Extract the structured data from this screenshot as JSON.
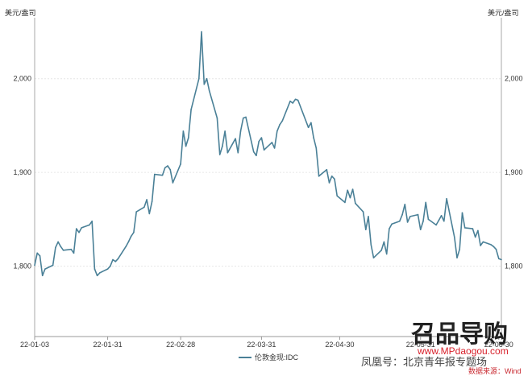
{
  "chart_data": {
    "type": "line",
    "unit_left": "美元/盎司",
    "unit_right": "美元/盎司",
    "x_ticks": [
      "22-01-03",
      "22-01-31",
      "22-02-28",
      "22-03-31",
      "22-04-30",
      "22-05-31",
      "22-06-30"
    ],
    "y_ticks": [
      "1,800",
      "1,900",
      "2,000"
    ],
    "y_tick_values": [
      1800,
      1900,
      2000
    ],
    "ylim": [
      1725,
      2065
    ],
    "xlim": [
      "2022-01-03",
      "2022-07-01"
    ],
    "grid": true,
    "legend_position": "bottom",
    "series": [
      {
        "name": "伦敦金现:IDC",
        "color": "#4a8097",
        "x": [
          "2022-01-03",
          "2022-01-04",
          "2022-01-05",
          "2022-01-06",
          "2022-01-07",
          "2022-01-10",
          "2022-01-11",
          "2022-01-12",
          "2022-01-13",
          "2022-01-14",
          "2022-01-17",
          "2022-01-18",
          "2022-01-19",
          "2022-01-20",
          "2022-01-21",
          "2022-01-24",
          "2022-01-25",
          "2022-01-26",
          "2022-01-27",
          "2022-01-28",
          "2022-01-31",
          "2022-02-01",
          "2022-02-02",
          "2022-02-03",
          "2022-02-04",
          "2022-02-07",
          "2022-02-08",
          "2022-02-09",
          "2022-02-10",
          "2022-02-11",
          "2022-02-14",
          "2022-02-15",
          "2022-02-16",
          "2022-02-17",
          "2022-02-18",
          "2022-02-21",
          "2022-02-22",
          "2022-02-23",
          "2022-02-24",
          "2022-02-25",
          "2022-02-28",
          "2022-03-01",
          "2022-03-02",
          "2022-03-03",
          "2022-03-04",
          "2022-03-07",
          "2022-03-08",
          "2022-03-09",
          "2022-03-10",
          "2022-03-11",
          "2022-03-14",
          "2022-03-15",
          "2022-03-16",
          "2022-03-17",
          "2022-03-18",
          "2022-03-21",
          "2022-03-22",
          "2022-03-23",
          "2022-03-24",
          "2022-03-25",
          "2022-03-28",
          "2022-03-29",
          "2022-03-30",
          "2022-03-31",
          "2022-04-01",
          "2022-04-04",
          "2022-04-05",
          "2022-04-06",
          "2022-04-07",
          "2022-04-08",
          "2022-04-11",
          "2022-04-12",
          "2022-04-13",
          "2022-04-14",
          "2022-04-18",
          "2022-04-19",
          "2022-04-20",
          "2022-04-21",
          "2022-04-22",
          "2022-04-25",
          "2022-04-26",
          "2022-04-27",
          "2022-04-28",
          "2022-04-29",
          "2022-05-02",
          "2022-05-03",
          "2022-05-04",
          "2022-05-05",
          "2022-05-06",
          "2022-05-09",
          "2022-05-10",
          "2022-05-11",
          "2022-05-12",
          "2022-05-13",
          "2022-05-16",
          "2022-05-17",
          "2022-05-18",
          "2022-05-19",
          "2022-05-20",
          "2022-05-23",
          "2022-05-24",
          "2022-05-25",
          "2022-05-26",
          "2022-05-27",
          "2022-05-30",
          "2022-05-31",
          "2022-06-01",
          "2022-06-02",
          "2022-06-03",
          "2022-06-06",
          "2022-06-07",
          "2022-06-08",
          "2022-06-09",
          "2022-06-10",
          "2022-06-13",
          "2022-06-14",
          "2022-06-15",
          "2022-06-16",
          "2022-06-17",
          "2022-06-20",
          "2022-06-21",
          "2022-06-22",
          "2022-06-23",
          "2022-06-24",
          "2022-06-27",
          "2022-06-28",
          "2022-06-29",
          "2022-06-30",
          "2022-07-01"
        ],
        "values": [
          1801,
          1814,
          1811,
          1790,
          1797,
          1801,
          1820,
          1826,
          1821,
          1817,
          1818,
          1814,
          1840,
          1836,
          1841,
          1844,
          1848,
          1797,
          1790,
          1793,
          1797,
          1800,
          1807,
          1805,
          1808,
          1821,
          1826,
          1832,
          1836,
          1858,
          1863,
          1871,
          1856,
          1869,
          1898,
          1897,
          1905,
          1907,
          1903,
          1889,
          1909,
          1944,
          1928,
          1937,
          1967,
          2000,
          2050,
          1994,
          2000,
          1987,
          1958,
          1919,
          1928,
          1944,
          1921,
          1936,
          1921,
          1944,
          1958,
          1959,
          1922,
          1918,
          1933,
          1937,
          1924,
          1932,
          1926,
          1944,
          1951,
          1955,
          1976,
          1974,
          1978,
          1977,
          1948,
          1953,
          1937,
          1926,
          1896,
          1903,
          1889,
          1896,
          1893,
          1875,
          1868,
          1881,
          1873,
          1882,
          1867,
          1858,
          1839,
          1853,
          1823,
          1809,
          1817,
          1826,
          1813,
          1840,
          1845,
          1848,
          1855,
          1866,
          1847,
          1853,
          1855,
          1839,
          1848,
          1868,
          1850,
          1844,
          1849,
          1854,
          1848,
          1872,
          1831,
          1809,
          1818,
          1857,
          1841,
          1840,
          1831,
          1838,
          1822,
          1826,
          1823,
          1821,
          1818,
          1808,
          1807
        ]
      }
    ]
  },
  "watermark": {
    "brand": "召品导购",
    "site": "www.MPdaogou.com",
    "source_line": "凤凰号：北京青年报专题场",
    "data_source": "数据来源：Wind"
  }
}
